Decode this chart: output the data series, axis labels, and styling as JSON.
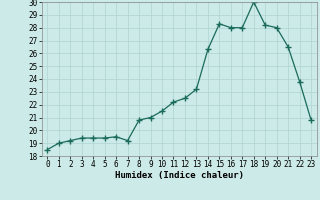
{
  "xlabel": "Humidex (Indice chaleur)",
  "x": [
    0,
    1,
    2,
    3,
    4,
    5,
    6,
    7,
    8,
    9,
    10,
    11,
    12,
    13,
    14,
    15,
    16,
    17,
    18,
    19,
    20,
    21,
    22,
    23
  ],
  "y": [
    18.5,
    19.0,
    19.2,
    19.4,
    19.4,
    19.4,
    19.5,
    19.2,
    20.8,
    21.0,
    21.5,
    22.2,
    22.5,
    23.2,
    26.3,
    28.3,
    28.0,
    28.0,
    30.0,
    28.2,
    28.0,
    26.5,
    23.8,
    20.8
  ],
  "ylim": [
    18,
    30
  ],
  "yticks": [
    18,
    19,
    20,
    21,
    22,
    23,
    24,
    25,
    26,
    27,
    28,
    29,
    30
  ],
  "line_color": "#1a6b5a",
  "marker": "+",
  "marker_size": 4,
  "bg_color": "#cceae7",
  "grid_color": "#b0d4d0",
  "axis_fontsize": 6.5,
  "tick_fontsize": 5.5
}
